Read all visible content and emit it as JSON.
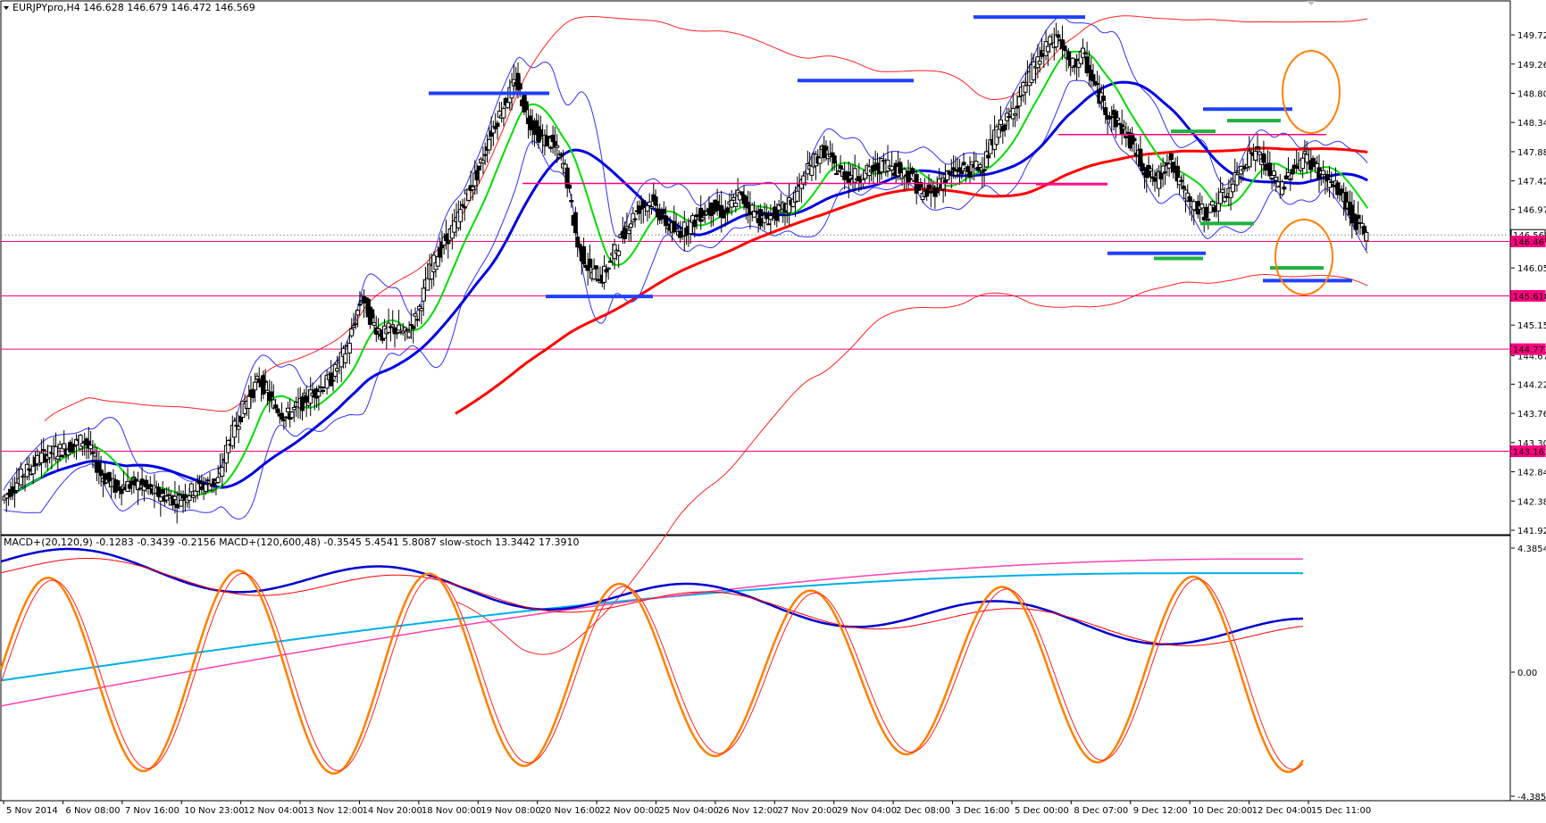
{
  "header": {
    "symbol_line": "EURJPYpro,H4  146.628 146.679 146.472 146.569",
    "indicator_line": "MACD+(20,120,9) -0.1283 -0.3439 -0.2156   MACD+(120,600,48) -0.3545 5.4541 5.8087   slow-stoch 13.3442 17.3910"
  },
  "chart_data": [
    {
      "type": "candlestick",
      "symbol": "EURJPYpro",
      "timeframe": "H4",
      "ylim": [
        141.92,
        150.1
      ],
      "y_ticks": [
        "149.720",
        "149.260",
        "148.800",
        "148.340",
        "147.880",
        "147.420",
        "146.970",
        "146.510",
        "146.050",
        "145.150",
        "144.670",
        "144.220",
        "143.760",
        "143.300",
        "142.840",
        "142.380",
        "141.920"
      ],
      "current_price": "146.569",
      "price_labels": [
        {
          "text": "146.569",
          "value": 146.569,
          "bg": "#ffffff",
          "fg": "#000000"
        },
        {
          "text": "146.467",
          "value": 146.467,
          "bg": "#ff0080",
          "fg": "#ffffff"
        },
        {
          "text": "145.610",
          "value": 145.61,
          "bg": "#ff0080",
          "fg": "#ffffff"
        },
        {
          "text": "144.771",
          "value": 144.771,
          "bg": "#ff0080",
          "fg": "#ffffff"
        },
        {
          "text": "143.163",
          "value": 143.163,
          "bg": "#ff0080",
          "fg": "#ffffff"
        }
      ],
      "horizontal_levels": [
        146.467,
        145.61,
        144.771,
        143.163
      ],
      "x_labels": [
        "5 Nov 2014",
        "6 Nov 08:00",
        "7 Nov 16:00",
        "10 Nov 23:00",
        "12 Nov 04:00",
        "13 Nov 12:00",
        "14 Nov 20:00",
        "18 Nov 00:00",
        "19 Nov 08:00",
        "20 Nov 16:00",
        "22 Nov 00:00",
        "25 Nov 04:00",
        "26 Nov 12:00",
        "27 Nov 20:00",
        "29 Nov 04:00",
        "2 Dec 08:00",
        "3 Dec 16:00",
        "5 Dec 00:00",
        "8 Dec 07:00",
        "9 Dec 12:00",
        "10 Dec 20:00",
        "12 Dec 04:00",
        "15 Dec 11:00"
      ],
      "path_points": [
        [
          0,
          142.4
        ],
        [
          10,
          142.8
        ],
        [
          20,
          143.1
        ],
        [
          30,
          143.2
        ],
        [
          40,
          143.35
        ],
        [
          48,
          142.8
        ],
        [
          55,
          142.6
        ],
        [
          65,
          142.65
        ],
        [
          75,
          142.5
        ],
        [
          85,
          142.4
        ],
        [
          95,
          142.6
        ],
        [
          105,
          142.7
        ],
        [
          110,
          143.3
        ],
        [
          118,
          143.9
        ],
        [
          125,
          144.3
        ],
        [
          132,
          143.9
        ],
        [
          138,
          143.7
        ],
        [
          145,
          143.9
        ],
        [
          152,
          144.1
        ],
        [
          160,
          144.3
        ],
        [
          168,
          144.8
        ],
        [
          175,
          145.6
        ],
        [
          180,
          145.2
        ],
        [
          185,
          145.0
        ],
        [
          190,
          145.1
        ],
        [
          196,
          145.0
        ],
        [
          202,
          145.3
        ],
        [
          208,
          146.0
        ],
        [
          214,
          146.4
        ],
        [
          220,
          146.7
        ],
        [
          226,
          147.2
        ],
        [
          232,
          147.6
        ],
        [
          238,
          148.2
        ],
        [
          244,
          148.6
        ],
        [
          250,
          149.0
        ],
        [
          256,
          148.4
        ],
        [
          262,
          148.1
        ],
        [
          268,
          148.0
        ],
        [
          274,
          147.6
        ],
        [
          280,
          146.4
        ],
        [
          286,
          146.0
        ],
        [
          292,
          145.9
        ],
        [
          298,
          146.3
        ],
        [
          304,
          146.7
        ],
        [
          310,
          147.0
        ],
        [
          316,
          147.1
        ],
        [
          322,
          146.8
        ],
        [
          328,
          146.6
        ],
        [
          334,
          146.7
        ],
        [
          340,
          146.9
        ],
        [
          346,
          147.0
        ],
        [
          352,
          146.9
        ],
        [
          358,
          147.2
        ],
        [
          364,
          147.0
        ],
        [
          370,
          146.8
        ],
        [
          376,
          146.9
        ],
        [
          382,
          147.0
        ],
        [
          388,
          147.3
        ],
        [
          394,
          147.7
        ],
        [
          400,
          147.9
        ],
        [
          406,
          147.6
        ],
        [
          412,
          147.5
        ],
        [
          418,
          147.5
        ],
        [
          424,
          147.6
        ],
        [
          430,
          147.7
        ],
        [
          436,
          147.6
        ],
        [
          442,
          147.5
        ],
        [
          448,
          147.2
        ],
        [
          454,
          147.3
        ],
        [
          460,
          147.5
        ],
        [
          466,
          147.6
        ],
        [
          472,
          147.6
        ],
        [
          478,
          147.7
        ],
        [
          484,
          148.2
        ],
        [
          490,
          148.4
        ],
        [
          496,
          148.8
        ],
        [
          502,
          149.2
        ],
        [
          508,
          149.5
        ],
        [
          514,
          149.7
        ],
        [
          520,
          149.2
        ],
        [
          526,
          149.4
        ],
        [
          532,
          148.9
        ],
        [
          538,
          148.5
        ],
        [
          544,
          148.3
        ],
        [
          550,
          148.0
        ],
        [
          556,
          147.6
        ],
        [
          562,
          147.4
        ],
        [
          568,
          147.8
        ],
        [
          574,
          147.3
        ],
        [
          580,
          147.0
        ],
        [
          586,
          146.9
        ],
        [
          592,
          147.1
        ],
        [
          598,
          147.3
        ],
        [
          604,
          147.7
        ],
        [
          610,
          147.9
        ],
        [
          616,
          147.6
        ],
        [
          622,
          147.3
        ],
        [
          628,
          147.6
        ],
        [
          634,
          147.8
        ],
        [
          640,
          147.6
        ],
        [
          646,
          147.4
        ],
        [
          652,
          147.2
        ],
        [
          658,
          146.8
        ],
        [
          664,
          146.55
        ]
      ]
    },
    {
      "type": "line",
      "title": "MACD+ / slow-stoch",
      "y_ticks": [
        "4.3854",
        "0.00",
        "-4.3854"
      ],
      "ylim": [
        -4.3854,
        4.3854
      ]
    }
  ]
}
